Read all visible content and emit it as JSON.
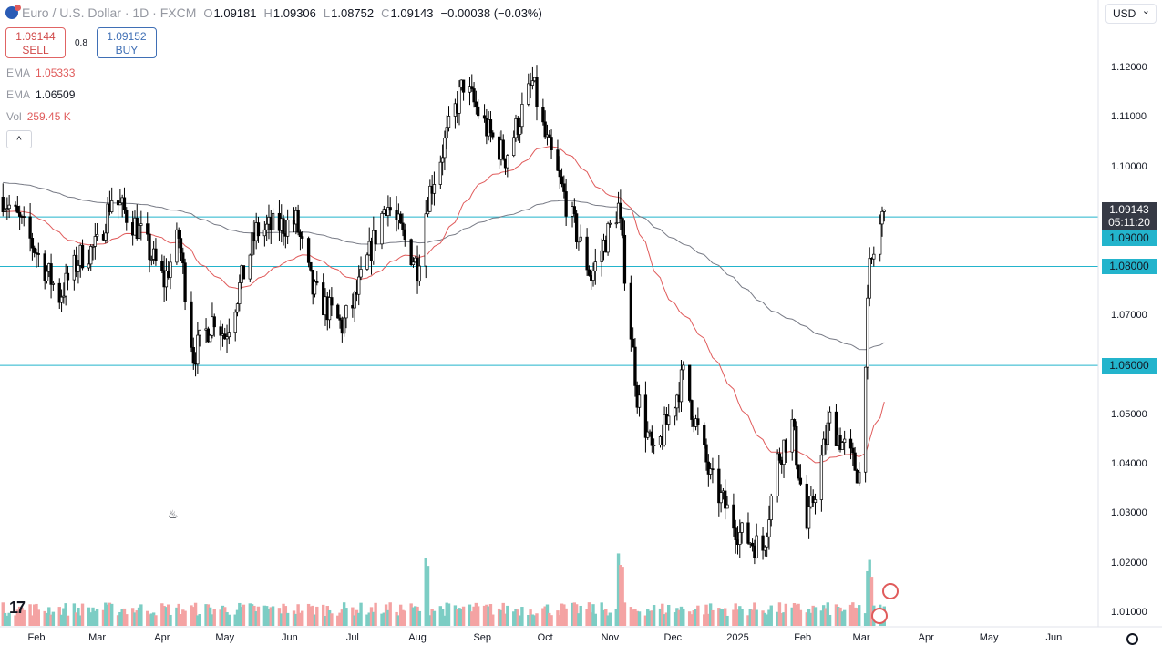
{
  "header": {
    "symbol": "Euro / U.S. Dollar · 1D · FXCM",
    "open_k": "O",
    "open": "1.09181",
    "high_k": "H",
    "high": "1.09306",
    "low_k": "L",
    "low": "1.08752",
    "close_k": "C",
    "close": "1.09143",
    "change": "−0.00038 (−0.03%)"
  },
  "trade": {
    "sell_price": "1.09144",
    "sell_label": "SELL",
    "spread": "0.8",
    "buy_price": "1.09152",
    "buy_label": "BUY"
  },
  "legend": [
    {
      "name": "EMA",
      "value": "1.05333"
    },
    {
      "name": "EMA",
      "value": "1.06509"
    },
    {
      "name": "Vol",
      "value": "259.45 K"
    }
  ],
  "collapse_label": "^",
  "currency": "USD",
  "last_price": {
    "price": "1.09143",
    "countdown": "05:11:20"
  },
  "tv_logo": "17",
  "colors": {
    "ema_fast": "#e05b5b",
    "ema_slow": "#787b86",
    "level": "#23b4cc",
    "vol_up": "#7ccdc4",
    "vol_down": "#f4a3a3"
  },
  "chart_data": {
    "type": "candlestick",
    "title": "Euro / U.S. Dollar · 1D · FXCM",
    "ylim": [
      1.005,
      1.125
    ],
    "y_ticks": [
      "1.12000",
      "1.11000",
      "1.10000",
      "1.09000",
      "1.08000",
      "1.07000",
      "1.06000",
      "1.05000",
      "1.04000",
      "1.03000",
      "1.02000",
      "1.01000"
    ],
    "x_ticks": [
      {
        "label": "Feb",
        "date": "2024-02-01"
      },
      {
        "label": "Mar",
        "date": "2024-03-01"
      },
      {
        "label": "Apr",
        "date": "2024-04-01"
      },
      {
        "label": "May",
        "date": "2024-05-01"
      },
      {
        "label": "Jun",
        "date": "2024-06-01"
      },
      {
        "label": "Jul",
        "date": "2024-07-01"
      },
      {
        "label": "Aug",
        "date": "2024-08-01"
      },
      {
        "label": "Sep",
        "date": "2024-09-01"
      },
      {
        "label": "Oct",
        "date": "2024-10-01"
      },
      {
        "label": "Nov",
        "date": "2024-11-01"
      },
      {
        "label": "Dec",
        "date": "2024-12-01"
      },
      {
        "label": "2025",
        "date": "2025-01-01"
      },
      {
        "label": "Feb",
        "date": "2025-02-01"
      },
      {
        "label": "Mar",
        "date": "2025-03-01"
      },
      {
        "label": "Apr",
        "date": "2025-04-01"
      },
      {
        "label": "May",
        "date": "2025-05-01"
      },
      {
        "label": "Jun",
        "date": "2025-06-01"
      }
    ],
    "horizontal_levels": [
      {
        "price": 1.09,
        "label": "1.09000"
      },
      {
        "price": 1.08,
        "label": "1.08000"
      },
      {
        "price": 1.06,
        "label": "1.06000"
      }
    ],
    "price_path": [
      [
        "2024-01-16",
        1.094
      ],
      [
        "2024-01-24",
        1.089
      ],
      [
        "2024-02-01",
        1.083
      ],
      [
        "2024-02-12",
        1.074
      ],
      [
        "2024-02-22",
        1.082
      ],
      [
        "2024-03-01",
        1.084
      ],
      [
        "2024-03-08",
        1.094
      ],
      [
        "2024-03-20",
        1.088
      ],
      [
        "2024-04-02",
        1.077
      ],
      [
        "2024-04-09",
        1.086
      ],
      [
        "2024-04-16",
        1.062
      ],
      [
        "2024-04-26",
        1.07
      ],
      [
        "2024-05-01",
        1.066
      ],
      [
        "2024-05-16",
        1.087
      ],
      [
        "2024-06-04",
        1.089
      ],
      [
        "2024-06-12",
        1.075
      ],
      [
        "2024-06-26",
        1.068
      ],
      [
        "2024-07-02",
        1.073
      ],
      [
        "2024-07-17",
        1.093
      ],
      [
        "2024-08-01",
        1.08
      ],
      [
        "2024-08-06",
        1.094
      ],
      [
        "2024-08-23",
        1.117
      ],
      [
        "2024-09-04",
        1.107
      ],
      [
        "2024-09-12",
        1.102
      ],
      [
        "2024-09-25",
        1.117
      ],
      [
        "2024-10-01",
        1.106
      ],
      [
        "2024-10-11",
        1.093
      ],
      [
        "2024-10-23",
        1.078
      ],
      [
        "2024-11-05",
        1.092
      ],
      [
        "2024-11-14",
        1.054
      ],
      [
        "2024-11-22",
        1.041
      ],
      [
        "2024-12-06",
        1.058
      ],
      [
        "2024-12-19",
        1.037
      ],
      [
        "2025-01-02",
        1.026
      ],
      [
        "2025-01-13",
        1.023
      ],
      [
        "2025-01-20",
        1.041
      ],
      [
        "2025-01-27",
        1.048
      ],
      [
        "2025-02-03",
        1.027
      ],
      [
        "2025-02-14",
        1.049
      ],
      [
        "2025-02-28",
        1.038
      ],
      [
        "2025-03-05",
        1.079
      ],
      [
        "2025-03-10",
        1.088
      ],
      [
        "2025-03-12",
        1.0914
      ]
    ],
    "volume_spikes": [
      "2024-08-05",
      "2024-11-06",
      "2025-03-05"
    ],
    "series": [
      {
        "name": "EMA 50",
        "last": 1.05333
      },
      {
        "name": "EMA 200",
        "last": 1.06509
      },
      {
        "name": "Volume",
        "last": "259.45 K"
      }
    ]
  }
}
